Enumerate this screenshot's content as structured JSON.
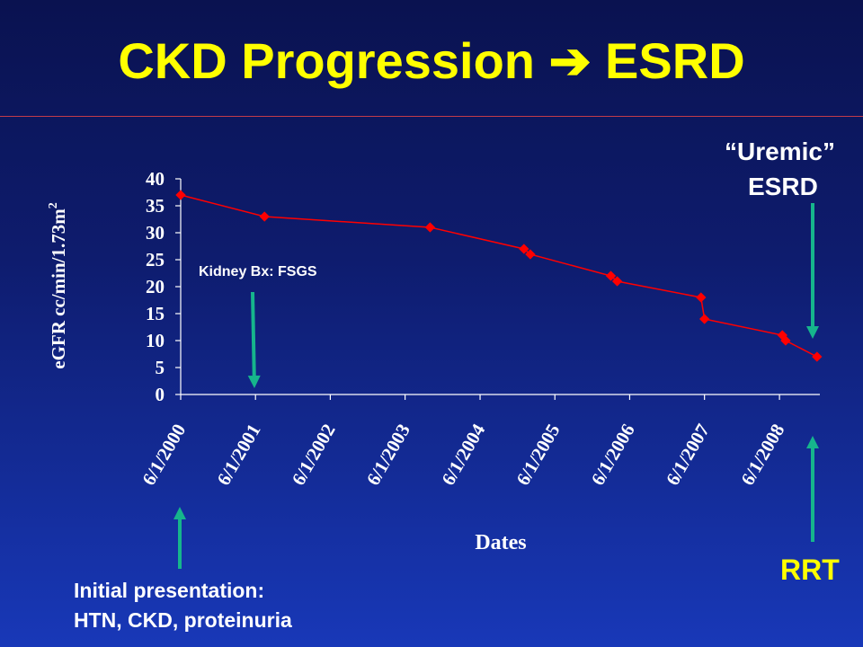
{
  "slide": {
    "title": "CKD Progression ",
    "title_arrow": "➔",
    "title_end": " ESRD",
    "title_color": "#ffff00",
    "rule_color": "#c23b4a"
  },
  "annotations": {
    "biopsy": "Kidney Bx: FSGS",
    "uremic_line1": "“Uremic”",
    "uremic_line2": "ESRD",
    "rrt": "RRT",
    "initial_line1": "Initial presentation:",
    "initial_line2": "HTN, CKD, proteinuria",
    "arrow_color": "#16b58c"
  },
  "chart_data": {
    "type": "line",
    "ylabel": "eGFR cc/min/1.73m",
    "ylabel_sup": "2",
    "xlabel": "Dates",
    "ylim": [
      0,
      40
    ],
    "yticks": [
      0,
      5,
      10,
      15,
      20,
      25,
      30,
      35,
      40
    ],
    "xlim": [
      "2000-06-01",
      "2008-12-15"
    ],
    "xticks": [
      "6/1/2000",
      "6/1/2001",
      "6/1/2002",
      "6/1/2003",
      "6/1/2004",
      "6/1/2005",
      "6/1/2006",
      "6/1/2007",
      "6/1/2008"
    ],
    "grid": false,
    "line_color": "#ff0000",
    "series": [
      {
        "x": [
          "2000-06-01",
          "2001-07-15",
          "2003-10-01",
          "2005-01-01",
          "2005-02-01",
          "2006-03-01",
          "2006-04-01",
          "2007-05-15",
          "2007-06-01",
          "2008-06-15",
          "2008-07-01",
          "2008-12-01"
        ],
        "y": [
          37,
          33,
          31,
          27,
          26,
          22,
          21,
          18,
          14,
          11,
          10,
          7
        ]
      }
    ]
  }
}
